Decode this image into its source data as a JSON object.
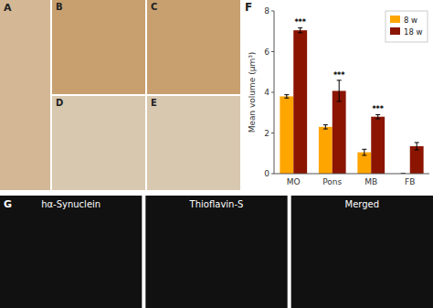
{
  "chart_data": {
    "type": "bar",
    "categories": [
      "MO",
      "Pons",
      "MB",
      "FB"
    ],
    "series": [
      {
        "name": "8 w",
        "color": "#FFA500",
        "values": [
          3.8,
          2.3,
          1.05,
          0.0
        ],
        "errors": [
          0.08,
          0.1,
          0.15,
          0.0
        ]
      },
      {
        "name": "18 w",
        "color": "#8B1500",
        "values": [
          7.05,
          4.07,
          2.8,
          1.35
        ],
        "errors": [
          0.12,
          0.52,
          0.1,
          0.18
        ],
        "annotations": [
          "***",
          "***",
          "***",
          null
        ]
      }
    ],
    "ylabel": "Mean volume (μm³)",
    "ylim": [
      0,
      8
    ],
    "yticks": [
      0,
      2,
      4,
      6,
      8
    ],
    "legend": "upper-right",
    "annotations": [
      "A",
      "B",
      "C",
      "D",
      "E",
      "F",
      "G",
      "hα-Synuclein",
      "Thioflavin-S",
      "Merged"
    ]
  }
}
